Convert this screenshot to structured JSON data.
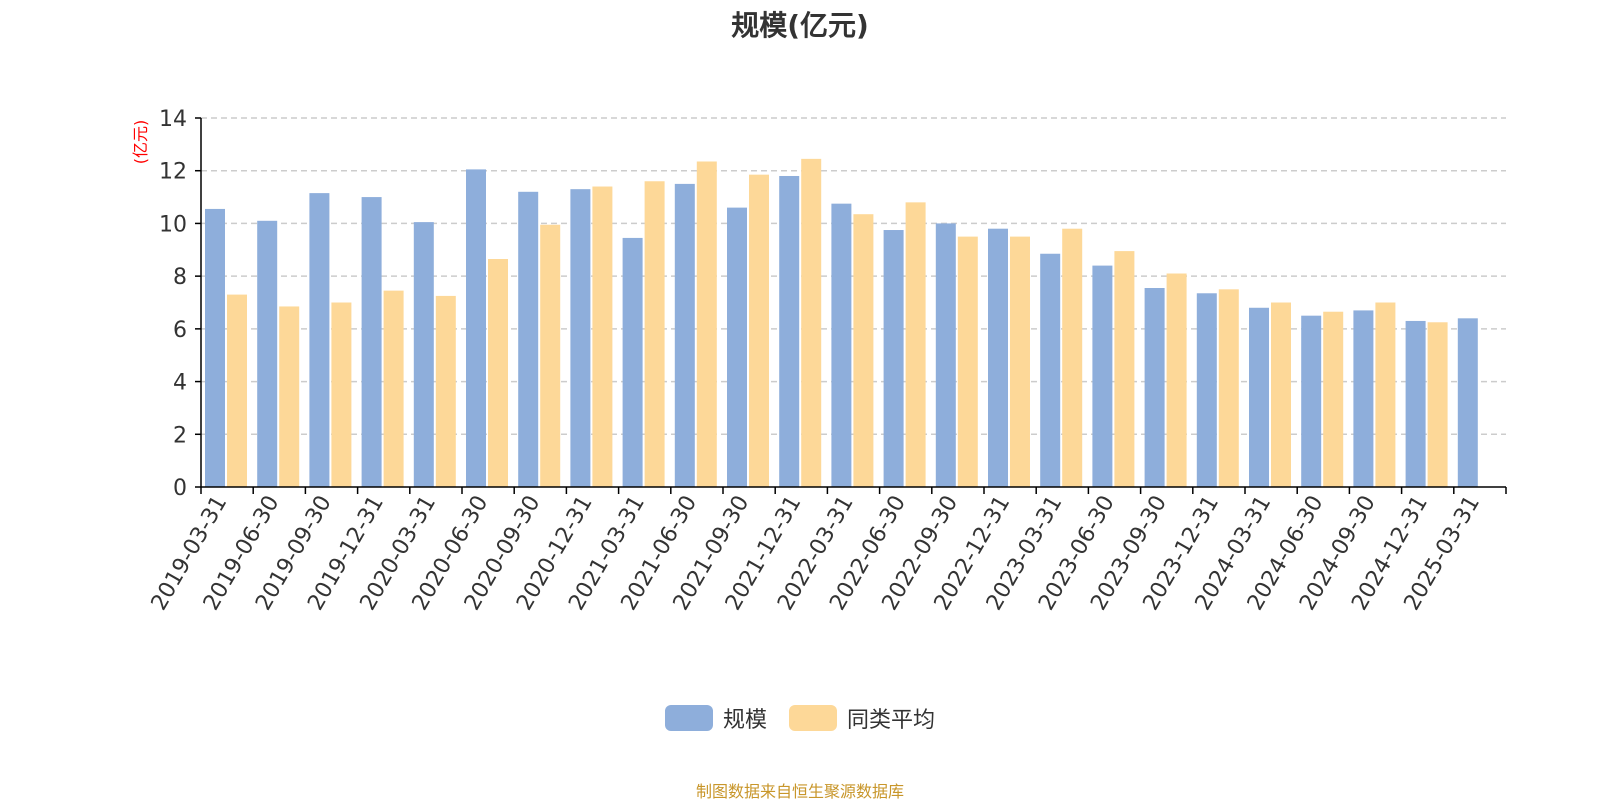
{
  "title": "规模(亿元)",
  "source_note": "制图数据来自恒生聚源数据库",
  "colors": {
    "series1": "#8eaedb",
    "series2": "#fdd898",
    "unit_label": "#ff0000",
    "axis": "#000000",
    "grid": "#cccccc"
  },
  "chart_data": {
    "type": "bar",
    "title": "规模(亿元)",
    "ylabel": "(亿元)",
    "xlabel": "",
    "ylim": [
      0,
      14
    ],
    "yticks": [
      0,
      2,
      4,
      6,
      8,
      10,
      12,
      14
    ],
    "grid": true,
    "legend_position": "bottom",
    "categories": [
      "2019-03-31",
      "2019-06-30",
      "2019-09-30",
      "2019-12-31",
      "2020-03-31",
      "2020-06-30",
      "2020-09-30",
      "2020-12-31",
      "2021-03-31",
      "2021-06-30",
      "2021-09-30",
      "2021-12-31",
      "2022-03-31",
      "2022-06-30",
      "2022-09-30",
      "2022-12-31",
      "2023-03-31",
      "2023-06-30",
      "2023-09-30",
      "2023-12-31",
      "2024-03-31",
      "2024-06-30",
      "2024-09-30",
      "2024-12-31",
      "2025-03-31"
    ],
    "series": [
      {
        "name": "规模",
        "values": [
          10.55,
          10.1,
          11.15,
          11.0,
          10.05,
          12.05,
          11.2,
          11.3,
          9.45,
          11.5,
          10.6,
          11.8,
          10.75,
          9.75,
          10.0,
          9.8,
          8.85,
          8.4,
          7.55,
          7.35,
          6.8,
          6.5,
          6.7,
          6.3,
          6.4
        ]
      },
      {
        "name": "同类平均",
        "values": [
          7.3,
          6.85,
          7.0,
          7.45,
          7.25,
          8.65,
          9.95,
          11.4,
          11.6,
          12.35,
          11.85,
          12.45,
          10.35,
          10.8,
          9.5,
          9.5,
          9.8,
          8.95,
          8.1,
          7.5,
          7.0,
          6.65,
          7.0,
          6.25,
          null
        ]
      }
    ]
  }
}
